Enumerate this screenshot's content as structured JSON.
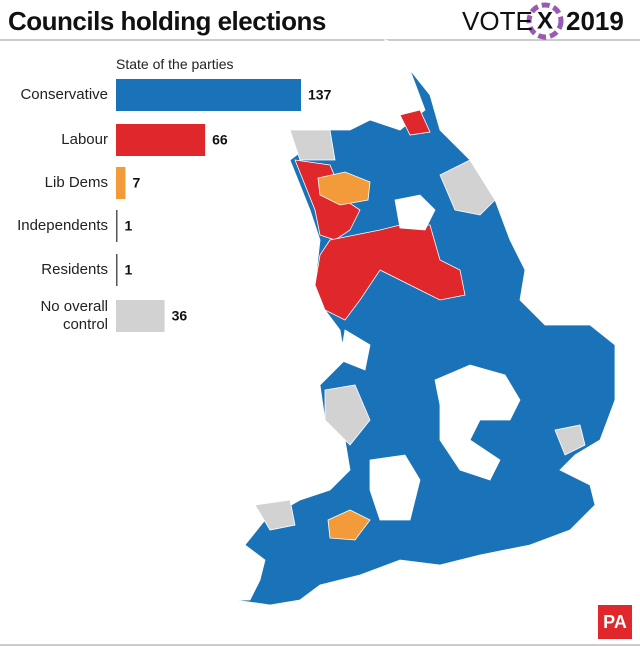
{
  "header": {
    "title": "Councils holding elections",
    "logo_vote": "VOTE",
    "logo_mark": "X",
    "logo_year": "2019"
  },
  "chart_data": {
    "type": "bar",
    "orientation": "horizontal",
    "subtitle": "State of the parties",
    "categories": [
      "Conservative",
      "Labour",
      "Lib Dems",
      "Independents",
      "Residents",
      "No overall control"
    ],
    "values": [
      137,
      66,
      7,
      1,
      1,
      36
    ],
    "colors": [
      "#1a72b9",
      "#e0272b",
      "#f39b3a",
      "#555555",
      "#555555",
      "#d2d2d2"
    ]
  },
  "credit": "PA"
}
